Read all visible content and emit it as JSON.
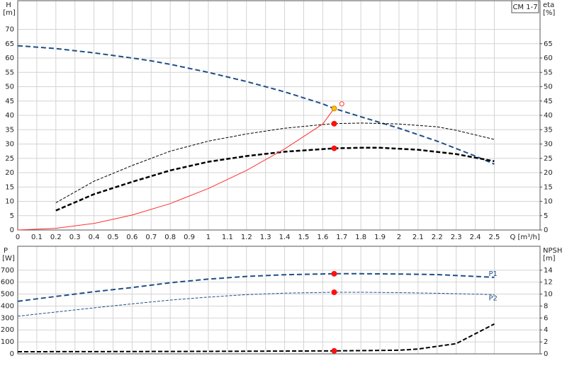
{
  "chart_data": [
    {
      "type": "line",
      "title": "CM 1-7",
      "ylabel": "H",
      "yunit": "[m]",
      "y2label": "eta",
      "y2unit": "[%]",
      "xlabel": "Q [m³/h]",
      "xlim": [
        0,
        2.74
      ],
      "xticks": [
        0,
        0.1,
        0.2,
        0.3,
        0.4,
        0.5,
        0.6,
        0.7,
        0.8,
        0.9,
        1.0,
        1.1,
        1.2,
        1.3,
        1.4,
        1.5,
        1.6,
        1.7,
        1.8,
        1.9,
        2.0,
        2.1,
        2.2,
        2.3,
        2.4,
        2.5
      ],
      "ylim": [
        0,
        80
      ],
      "yticks": [
        0,
        5,
        10,
        15,
        20,
        25,
        30,
        35,
        40,
        45,
        50,
        55,
        60,
        65,
        70
      ],
      "y2lim": [
        0,
        80
      ],
      "y2ticks": [
        0,
        5,
        10,
        15,
        20,
        25,
        30,
        35,
        40,
        45,
        50,
        55,
        60,
        65
      ],
      "grid": true,
      "show_xtick_labels": true,
      "series": [
        {
          "color": "#1f4f86",
          "dash": "7,4",
          "width": 2,
          "x": [
            0,
            0.2,
            0.4,
            0.6,
            0.7,
            0.8,
            1.0,
            1.2,
            1.4,
            1.6,
            1.66,
            1.8,
            2.0,
            2.2,
            2.4,
            2.5
          ],
          "values": [
            64.3,
            63.3,
            61.8,
            60,
            59,
            57.8,
            55,
            51.8,
            48.2,
            44,
            42.4,
            39.5,
            35.5,
            31,
            25.8,
            23
          ]
        },
        {
          "color": "#000000",
          "dash": "4,2",
          "width": 1,
          "axis": "y2",
          "x": [
            0.2,
            0.4,
            0.6,
            0.8,
            1.0,
            1.2,
            1.4,
            1.6,
            1.66,
            1.8,
            2.0,
            2.2,
            2.3,
            2.5
          ],
          "values": [
            9.5,
            17,
            22.5,
            27.5,
            31,
            33.5,
            35.5,
            36.8,
            37.1,
            37.3,
            37,
            36,
            34.8,
            31.6
          ]
        },
        {
          "color": "#000000",
          "dash": "6,3",
          "width": 2.5,
          "axis": "y2",
          "x": [
            0.2,
            0.4,
            0.6,
            0.8,
            1.0,
            1.2,
            1.4,
            1.66,
            1.8,
            1.9,
            2.1,
            2.3,
            2.5
          ],
          "values": [
            6.8,
            12.5,
            16.8,
            20.8,
            23.8,
            25.8,
            27.3,
            28.5,
            28.7,
            28.7,
            28,
            26.5,
            24
          ]
        },
        {
          "color": "#ff3030",
          "dash": "none",
          "width": 1,
          "x": [
            0,
            0.2,
            0.4,
            0.6,
            0.8,
            1.0,
            1.2,
            1.4,
            1.6,
            1.66
          ],
          "values": [
            0,
            0.6,
            2.3,
            5.2,
            9.2,
            14.5,
            20.8,
            28.3,
            37,
            42.4
          ]
        }
      ],
      "points": [
        {
          "x": 1.66,
          "y": 42.4,
          "color": "#ffc000"
        },
        {
          "x": 1.66,
          "y": 37.1,
          "color": "#ff1010",
          "axis": "y2"
        },
        {
          "x": 1.66,
          "y": 28.5,
          "color": "#ff1010",
          "axis": "y2"
        },
        {
          "x": 1.7,
          "y": 44,
          "color": "none"
        }
      ]
    },
    {
      "type": "line",
      "ylabel": "P",
      "yunit": "[W]",
      "y2label": "NPSH",
      "y2unit": "[m]",
      "xlim": [
        0,
        2.74
      ],
      "xticks": [
        0,
        0.1,
        0.2,
        0.3,
        0.4,
        0.5,
        0.6,
        0.7,
        0.8,
        0.9,
        1.0,
        1.1,
        1.2,
        1.3,
        1.4,
        1.5,
        1.6,
        1.7,
        1.8,
        1.9,
        2.0,
        2.1,
        2.2,
        2.3,
        2.4,
        2.5
      ],
      "ylim": [
        0,
        900
      ],
      "yticks": [
        0,
        100,
        200,
        300,
        400,
        500,
        600,
        700
      ],
      "y2lim": [
        0,
        18
      ],
      "y2ticks": [
        0,
        2,
        4,
        6,
        8,
        10,
        12,
        14
      ],
      "grid": true,
      "show_xtick_labels": false,
      "series": [
        {
          "name": "P1",
          "color": "#1f4f86",
          "dash": "7,4",
          "width": 2,
          "x": [
            0,
            0.2,
            0.4,
            0.6,
            0.8,
            1.0,
            1.2,
            1.4,
            1.66,
            1.8,
            2.0,
            2.2,
            2.4,
            2.5
          ],
          "values": [
            440,
            480,
            520,
            555,
            595,
            625,
            648,
            662,
            670,
            670,
            668,
            663,
            648,
            640
          ]
        },
        {
          "name": "P2",
          "color": "#1f4f86",
          "dash": "4,2",
          "width": 1,
          "x": [
            0,
            0.2,
            0.4,
            0.6,
            0.8,
            1.0,
            1.2,
            1.4,
            1.66,
            1.8,
            2.0,
            2.2,
            2.4,
            2.5
          ],
          "values": [
            315,
            350,
            385,
            418,
            450,
            475,
            495,
            508,
            515,
            515,
            512,
            507,
            500,
            495
          ]
        },
        {
          "color": "#000000",
          "dash": "6,3",
          "width": 2,
          "axis": "y2",
          "x": [
            0,
            0.5,
            1.0,
            1.66,
            2.0,
            2.1,
            2.3,
            2.5
          ],
          "values": [
            0.35,
            0.38,
            0.42,
            0.5,
            0.6,
            0.8,
            1.7,
            5
          ]
        }
      ],
      "points": [
        {
          "x": 1.66,
          "y": 670,
          "color": "#ff1010"
        },
        {
          "x": 1.66,
          "y": 515,
          "color": "#ff1010"
        },
        {
          "x": 1.66,
          "y": 0.5,
          "color": "#ff1010",
          "axis": "y2"
        }
      ]
    }
  ]
}
